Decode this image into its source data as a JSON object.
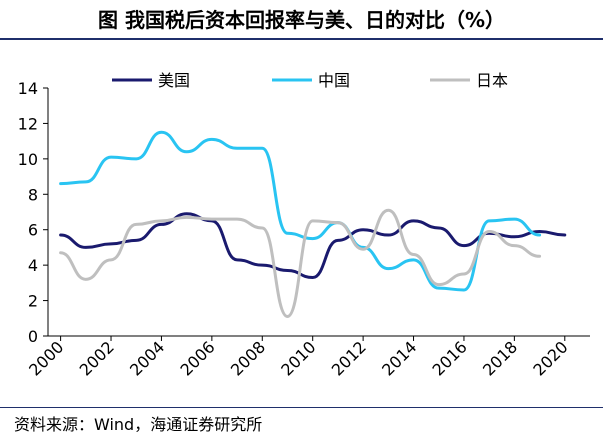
{
  "title": "图  我国税后资本回报率与美、日的对比（%）",
  "source": "资料来源：Wind，海通证券研究所",
  "colors": {
    "us": "#1a1a6e",
    "china": "#29c4f2",
    "japan": "#bfbfbf",
    "axis": "#000000",
    "rule": "#1f2f6b"
  },
  "chart_data": {
    "type": "line",
    "title": "我国税后资本回报率与美、日的对比（%）",
    "xlabel": "",
    "ylabel": "",
    "xlim": [
      1999.5,
      2021
    ],
    "ylim": [
      0,
      14
    ],
    "yticks": [
      0,
      2,
      4,
      6,
      8,
      10,
      12,
      14
    ],
    "xticks": [
      2000,
      2002,
      2004,
      2006,
      2008,
      2010,
      2012,
      2014,
      2016,
      2018,
      2020
    ],
    "legend_position": "top",
    "series": [
      {
        "name": "美国",
        "color": "#1a1a6e",
        "x": [
          2000,
          2001,
          2002,
          2003,
          2004,
          2005,
          2006,
          2007,
          2008,
          2009,
          2010,
          2011,
          2012,
          2013,
          2014,
          2015,
          2016,
          2017,
          2018,
          2019,
          2020
        ],
        "y": [
          5.7,
          5.0,
          5.2,
          5.4,
          6.3,
          6.9,
          6.5,
          4.3,
          4.0,
          3.7,
          3.3,
          5.4,
          6.0,
          5.7,
          6.5,
          6.1,
          5.1,
          5.8,
          5.6,
          5.9,
          5.7
        ]
      },
      {
        "name": "中国",
        "color": "#29c4f2",
        "x": [
          2000,
          2001,
          2002,
          2003,
          2004,
          2005,
          2006,
          2007,
          2008,
          2009,
          2010,
          2011,
          2012,
          2013,
          2014,
          2015,
          2016,
          2017,
          2018,
          2019
        ],
        "y": [
          8.6,
          8.7,
          10.1,
          10.0,
          11.5,
          10.4,
          11.1,
          10.6,
          10.6,
          5.8,
          5.5,
          6.4,
          5.0,
          3.8,
          4.3,
          2.7,
          2.6,
          6.5,
          6.6,
          5.7
        ]
      },
      {
        "name": "日本",
        "color": "#bfbfbf",
        "x": [
          2000,
          2001,
          2002,
          2003,
          2004,
          2005,
          2006,
          2007,
          2008,
          2009,
          2010,
          2011,
          2012,
          2013,
          2014,
          2015,
          2016,
          2017,
          2018,
          2019
        ],
        "y": [
          4.7,
          3.2,
          4.3,
          6.3,
          6.5,
          6.7,
          6.6,
          6.6,
          6.1,
          1.1,
          6.5,
          6.4,
          4.9,
          7.1,
          4.6,
          2.9,
          3.5,
          5.9,
          5.1,
          4.5
        ]
      }
    ]
  }
}
